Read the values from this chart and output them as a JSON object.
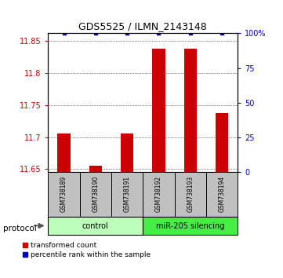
{
  "title": "GDS5525 / ILMN_2143148",
  "samples": [
    "GSM738189",
    "GSM738190",
    "GSM738191",
    "GSM738192",
    "GSM738193",
    "GSM738194"
  ],
  "red_values": [
    11.706,
    11.656,
    11.706,
    11.838,
    11.838,
    11.737
  ],
  "blue_values": [
    100,
    100,
    100,
    100,
    100,
    100
  ],
  "ylim_left": [
    11.645,
    11.862
  ],
  "ylim_right": [
    0,
    100
  ],
  "yticks_left": [
    11.65,
    11.7,
    11.75,
    11.8,
    11.85
  ],
  "yticks_right": [
    0,
    25,
    50,
    75,
    100
  ],
  "groups": [
    {
      "label": "control",
      "start": 0,
      "end": 3,
      "color": "#BBFFBB"
    },
    {
      "label": "miR-205 silencing",
      "start": 3,
      "end": 6,
      "color": "#44EE44"
    }
  ],
  "protocol_label": "protocol",
  "legend_red": "transformed count",
  "legend_blue": "percentile rank within the sample",
  "bar_color": "#CC0000",
  "dot_color": "#0000CC",
  "left_label_color": "#CC0000",
  "right_label_color": "#0000CC",
  "sample_bg_color": "#C0C0C0"
}
